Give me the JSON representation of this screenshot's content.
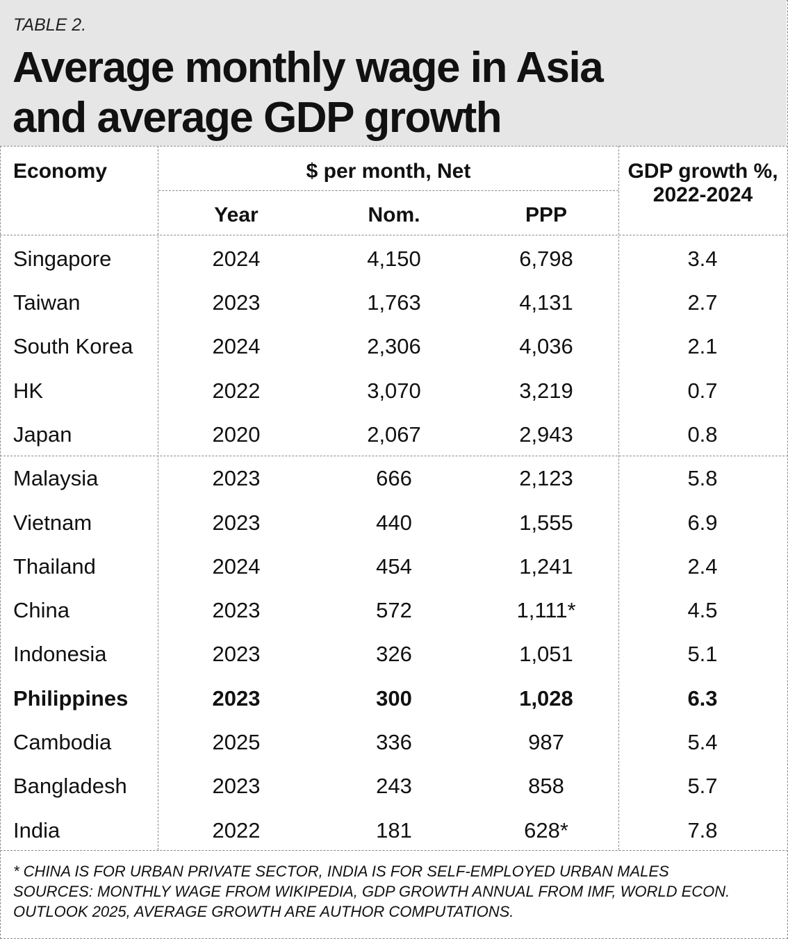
{
  "header": {
    "table_label": "TABLE 2.",
    "title_line1": "Average monthly wage in Asia",
    "title_line2": "and average GDP growth"
  },
  "columns": {
    "economy": "Economy",
    "group": "$ per month, Net",
    "year": "Year",
    "nom": "Nom.",
    "ppp": "PPP",
    "gdp_line1": "GDP growth %,",
    "gdp_line2": "2022-2024"
  },
  "rows": [
    {
      "economy": "Singapore",
      "year": "2024",
      "nom": "4,150",
      "ppp": "6,798",
      "gdp": "3.4"
    },
    {
      "economy": "Taiwan",
      "year": "2023",
      "nom": "1,763",
      "ppp": "4,131",
      "gdp": "2.7"
    },
    {
      "economy": "South Korea",
      "year": "2024",
      "nom": "2,306",
      "ppp": "4,036",
      "gdp": "2.1"
    },
    {
      "economy": "HK",
      "year": "2022",
      "nom": "3,070",
      "ppp": "3,219",
      "gdp": "0.7"
    },
    {
      "economy": "Japan",
      "year": "2020",
      "nom": "2,067",
      "ppp": "2,943",
      "gdp": "0.8"
    },
    {
      "economy": "Malaysia",
      "year": "2023",
      "nom": "666",
      "ppp": "2,123",
      "gdp": "5.8"
    },
    {
      "economy": "Vietnam",
      "year": "2023",
      "nom": "440",
      "ppp": "1,555",
      "gdp": "6.9"
    },
    {
      "economy": "Thailand",
      "year": "2024",
      "nom": "454",
      "ppp": "1,241",
      "gdp": "2.4"
    },
    {
      "economy": "China",
      "year": "2023",
      "nom": "572",
      "ppp": "1,111*",
      "gdp": "4.5"
    },
    {
      "economy": "Indonesia",
      "year": "2023",
      "nom": "326",
      "ppp": "1,051",
      "gdp": "5.1"
    },
    {
      "economy": "Philippines",
      "year": "2023",
      "nom": "300",
      "ppp": "1,028",
      "gdp": "6.3",
      "highlight": true
    },
    {
      "economy": "Cambodia",
      "year": "2025",
      "nom": "336",
      "ppp": "987",
      "gdp": "5.4"
    },
    {
      "economy": "Bangladesh",
      "year": "2023",
      "nom": "243",
      "ppp": "858",
      "gdp": "5.7"
    },
    {
      "economy": "India",
      "year": "2022",
      "nom": "181",
      "ppp": "628*",
      "gdp": "7.8"
    }
  ],
  "footnotes": {
    "line1": "* CHINA IS FOR URBAN PRIVATE SECTOR, INDIA IS FOR SELF-EMPLOYED URBAN MALES",
    "line2": "SOURCES: MONTHLY WAGE FROM WIKIPEDIA, GDP GROWTH ANNUAL FROM IMF, WORLD ECON.",
    "line3": "OUTLOOK 2025, AVERAGE GROWTH ARE AUTHOR COMPUTATIONS."
  }
}
